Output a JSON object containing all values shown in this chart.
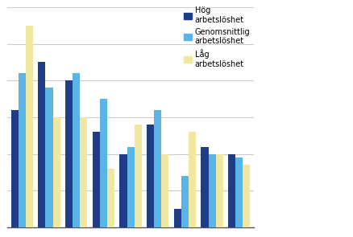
{
  "series": {
    "hog": [
      32,
      45,
      40,
      26,
      20,
      28,
      5,
      22,
      20
    ],
    "genomsnittlig": [
      42,
      38,
      42,
      35,
      22,
      32,
      14,
      20,
      19
    ],
    "lag": [
      55,
      30,
      30,
      16,
      28,
      20,
      26,
      20,
      17
    ]
  },
  "colors": {
    "hog": "#1f3c88",
    "genomsnittlig": "#5ab4e5",
    "lag": "#f0e8a0"
  },
  "legend_labels": [
    "Hög\narbetslöshet",
    "Genomsnittlig\narbetslöshet",
    "Låg\narbetslöshet"
  ],
  "ylim": [
    0,
    60
  ],
  "grid_color": "#cccccc",
  "background_color": "#ffffff",
  "bar_width": 0.27,
  "legend_fontsize": 7.0
}
